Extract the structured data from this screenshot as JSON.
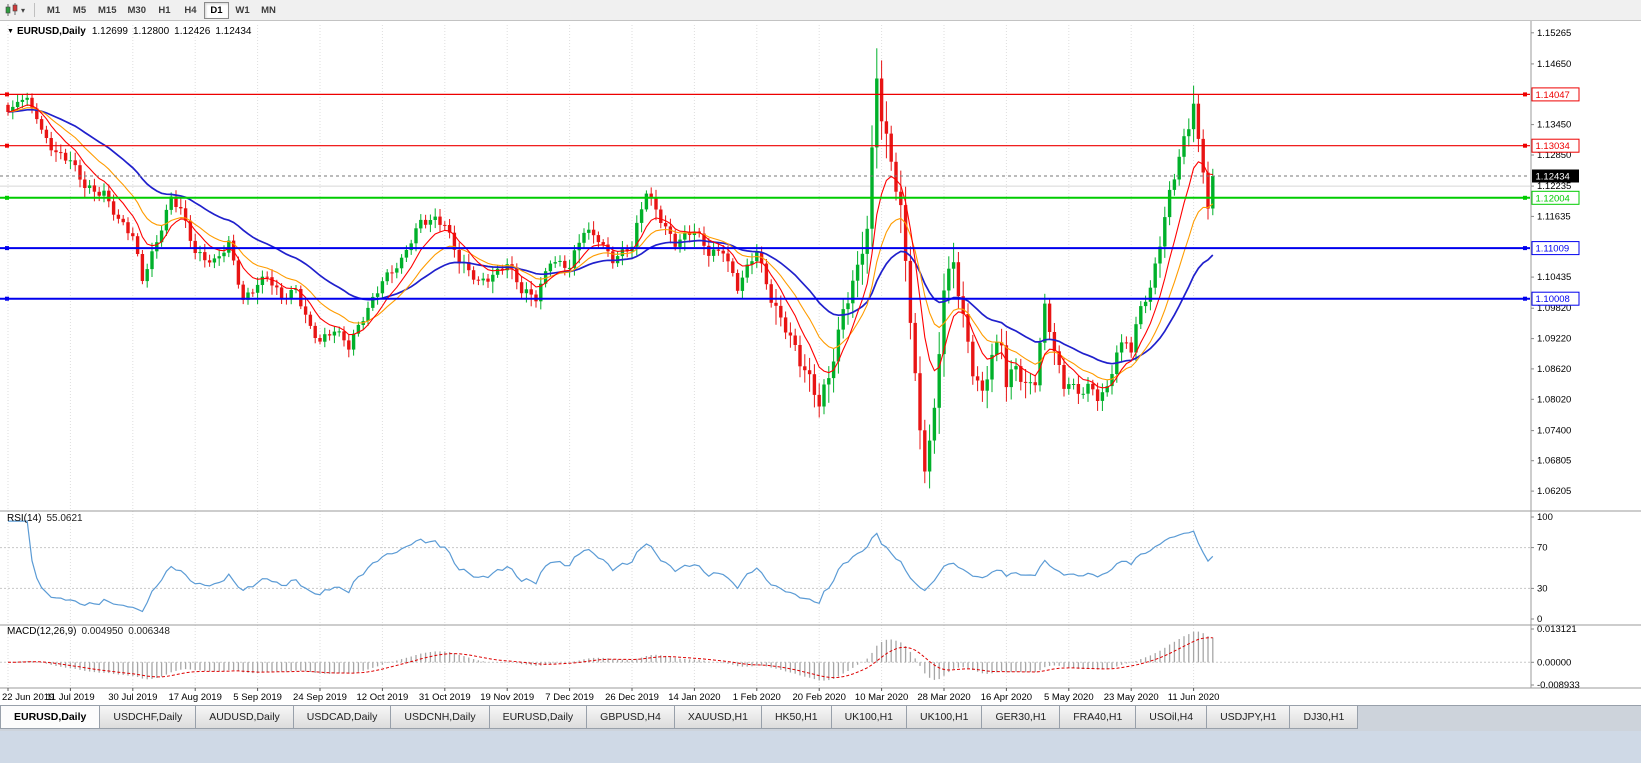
{
  "icons": {
    "dropdown_caret": "▾",
    "chart_menu_arrow": "▼"
  },
  "toolbar": {
    "timeframes": [
      "M1",
      "M5",
      "M15",
      "M30",
      "H1",
      "H4",
      "D1",
      "W1",
      "MN"
    ],
    "active_timeframe": "D1"
  },
  "chart": {
    "symbol_title": "EURUSD,Daily",
    "ohlc": {
      "open": "1.12699",
      "high": "1.12800",
      "low": "1.12426",
      "close": "1.12434"
    }
  },
  "rsi": {
    "name": "RSI(14)",
    "value": "55.0621",
    "axis_labels": [
      "100",
      "70",
      "30",
      "0"
    ],
    "upper_level": 70,
    "lower_level": 30
  },
  "macd": {
    "name": "MACD(12,26,9)",
    "value_main": "0.004950",
    "value_signal": "0.006348",
    "axis_labels": [
      "0.013121",
      "0.00000",
      "-0.008933"
    ]
  },
  "tabs": {
    "active_index": 0,
    "list": [
      "EURUSD,Daily",
      "USDCHF,Daily",
      "AUDUSD,Daily",
      "USDCAD,Daily",
      "USDCNH,Daily",
      "EURUSD,Daily",
      "GBPUSD,H4",
      "XAUUSD,H1",
      "HK50,H1",
      "UK100,H1",
      "UK100,H1",
      "GER30,H1",
      "FRA40,H1",
      "USOil,H4",
      "USDJPY,H1",
      "DJ30,H1"
    ]
  },
  "colors": {
    "candle_up": "#00b02a",
    "candle_down": "#e81414",
    "ma_fast": "#ff0000",
    "ma_mid": "#ff9c00",
    "ma_slow": "#2020cc",
    "rsi_line": "#5b9bd5",
    "macd_hist": "#a6a6a6",
    "macd_signal": "#dd0000",
    "grid": "#dedede",
    "separator": "#9b9b9b",
    "current_price_bg": "#000000",
    "hline_red": "#ee0000",
    "hline_green": "#00cc00",
    "hline_blue": "#0000ee"
  },
  "chart_data": {
    "type": "candlestick",
    "symbol": "EURUSD",
    "timeframe": "Daily",
    "candle_count": 252,
    "price_max": 1.1542,
    "price_min": 1.0587,
    "anchors": [
      [
        0,
        1.137
      ],
      [
        2,
        1.139
      ],
      [
        4,
        1.1398
      ],
      [
        7,
        1.1335
      ],
      [
        10,
        1.1286
      ],
      [
        13,
        1.127
      ],
      [
        16,
        1.1225
      ],
      [
        20,
        1.1212
      ],
      [
        23,
        1.1152
      ],
      [
        26,
        1.1122
      ],
      [
        28,
        1.1042
      ],
      [
        31,
        1.1118
      ],
      [
        34,
        1.1198
      ],
      [
        36,
        1.1172
      ],
      [
        39,
        1.1092
      ],
      [
        43,
        1.1078
      ],
      [
        46,
        1.1108
      ],
      [
        49,
        1.0992
      ],
      [
        52,
        1.1032
      ],
      [
        54,
        1.1052
      ],
      [
        57,
        1.1002
      ],
      [
        60,
        1.1012
      ],
      [
        63,
        1.0942
      ],
      [
        65,
        1.0922
      ],
      [
        68,
        1.0942
      ],
      [
        71,
        1.0902
      ],
      [
        74,
        1.0962
      ],
      [
        78,
        1.1042
      ],
      [
        82,
        1.1072
      ],
      [
        86,
        1.1152
      ],
      [
        89,
        1.1162
      ],
      [
        91,
        1.1152
      ],
      [
        94,
        1.1072
      ],
      [
        98,
        1.1032
      ],
      [
        101,
        1.1052
      ],
      [
        104,
        1.1072
      ],
      [
        107,
        1.1012
      ],
      [
        110,
        1.1002
      ],
      [
        113,
        1.1082
      ],
      [
        117,
        1.1062
      ],
      [
        120,
        1.1132
      ],
      [
        123,
        1.1122
      ],
      [
        126,
        1.1082
      ],
      [
        130,
        1.1102
      ],
      [
        133,
        1.1212
      ],
      [
        136,
        1.1162
      ],
      [
        139,
        1.1112
      ],
      [
        143,
        1.1132
      ],
      [
        146,
        1.1092
      ],
      [
        149,
        1.1102
      ],
      [
        152,
        1.1022
      ],
      [
        156,
        1.1092
      ],
      [
        159,
        1.1002
      ],
      [
        162,
        1.0952
      ],
      [
        165,
        1.0872
      ],
      [
        169,
        1.0792
      ],
      [
        171,
        1.0852
      ],
      [
        174,
        1.0982
      ],
      [
        177,
        1.1052
      ],
      [
        179,
        1.1132
      ],
      [
        180,
        1.1282
      ],
      [
        181,
        1.1442
      ],
      [
        182,
        1.1362
      ],
      [
        184,
        1.1282
      ],
      [
        186,
        1.1182
      ],
      [
        188,
        1.0962
      ],
      [
        190,
        1.0722
      ],
      [
        191,
        1.0662
      ],
      [
        193,
        1.0772
      ],
      [
        195,
        1.1032
      ],
      [
        197,
        1.1082
      ],
      [
        199,
        1.0962
      ],
      [
        201,
        1.0852
      ],
      [
        203,
        1.0802
      ],
      [
        205,
        1.0892
      ],
      [
        207,
        1.0922
      ],
      [
        208,
        1.0842
      ],
      [
        210,
        1.0872
      ],
      [
        212,
        1.0822
      ],
      [
        214,
        1.0832
      ],
      [
        216,
        1.0982
      ],
      [
        218,
        1.0902
      ],
      [
        220,
        1.0832
      ],
      [
        221,
        1.0842
      ],
      [
        223,
        1.0812
      ],
      [
        225,
        1.0822
      ],
      [
        227,
        1.0802
      ],
      [
        229,
        1.0822
      ],
      [
        231,
        1.0902
      ],
      [
        233,
        1.0922
      ],
      [
        234,
        1.0902
      ],
      [
        236,
        1.0982
      ],
      [
        238,
        1.1012
      ],
      [
        240,
        1.1112
      ],
      [
        242,
        1.1212
      ],
      [
        244,
        1.1292
      ],
      [
        246,
        1.1342
      ],
      [
        247,
        1.1392
      ],
      [
        248,
        1.1302
      ],
      [
        249,
        1.1242
      ],
      [
        250,
        1.1182
      ],
      [
        251,
        1.12434
      ]
    ],
    "wick_overrides": {
      "2": {
        "high": 1.1405
      },
      "4": {
        "high": 1.1408
      },
      "181": {
        "high": 1.1496
      },
      "191": {
        "low": 1.0636
      },
      "247": {
        "high": 1.1422
      }
    },
    "ma_periods": {
      "fast": 8,
      "mid": 16,
      "slow": 34
    },
    "date_indices": [
      0,
      13,
      26,
      39,
      52,
      65,
      78,
      91,
      104,
      117,
      130,
      143,
      156,
      169,
      182,
      195,
      208,
      221,
      234,
      247
    ],
    "dates": [
      "22 Jun 2019",
      "11 Jul 2019",
      "30 Jul 2019",
      "17 Aug 2019",
      "5 Sep 2019",
      "24 Sep 2019",
      "12 Oct 2019",
      "31 Oct 2019",
      "19 Nov 2019",
      "7 Dec 2019",
      "26 Dec 2019",
      "14 Jan 2020",
      "1 Feb 2020",
      "20 Feb 2020",
      "10 Mar 2020",
      "28 Mar 2020",
      "16 Apr 2020",
      "5 May 2020",
      "23 May 2020",
      "11 Jun 2020"
    ],
    "price_axis_labels": [
      "1.15265",
      "1.14650",
      "1.13450",
      "1.12850",
      "1.12235",
      "1.11635",
      "1.10435",
      "1.09820",
      "1.09220",
      "1.08620",
      "1.08020",
      "1.07400",
      "1.06805",
      "1.06205"
    ],
    "hlines": [
      {
        "price": 1.14047,
        "label": "1.14047",
        "color": "#ee0000",
        "width": 1.2
      },
      {
        "price": 1.13034,
        "label": "1.13034",
        "color": "#ee0000",
        "width": 1.2
      },
      {
        "price": 1.12004,
        "label": "1.12004",
        "color": "#00cc00",
        "width": 2
      },
      {
        "price": 1.11009,
        "label": "1.11009",
        "color": "#0000ee",
        "width": 2
      },
      {
        "price": 1.10008,
        "label": "1.10008",
        "color": "#0000ee",
        "width": 2
      }
    ],
    "minor_line_price": 1.12235,
    "current_price": {
      "value": 1.12434,
      "label": "1.12434"
    },
    "rsi_axis": [
      100,
      70,
      30,
      0
    ],
    "macd_max": 0.013121,
    "macd_min": -0.008933
  }
}
